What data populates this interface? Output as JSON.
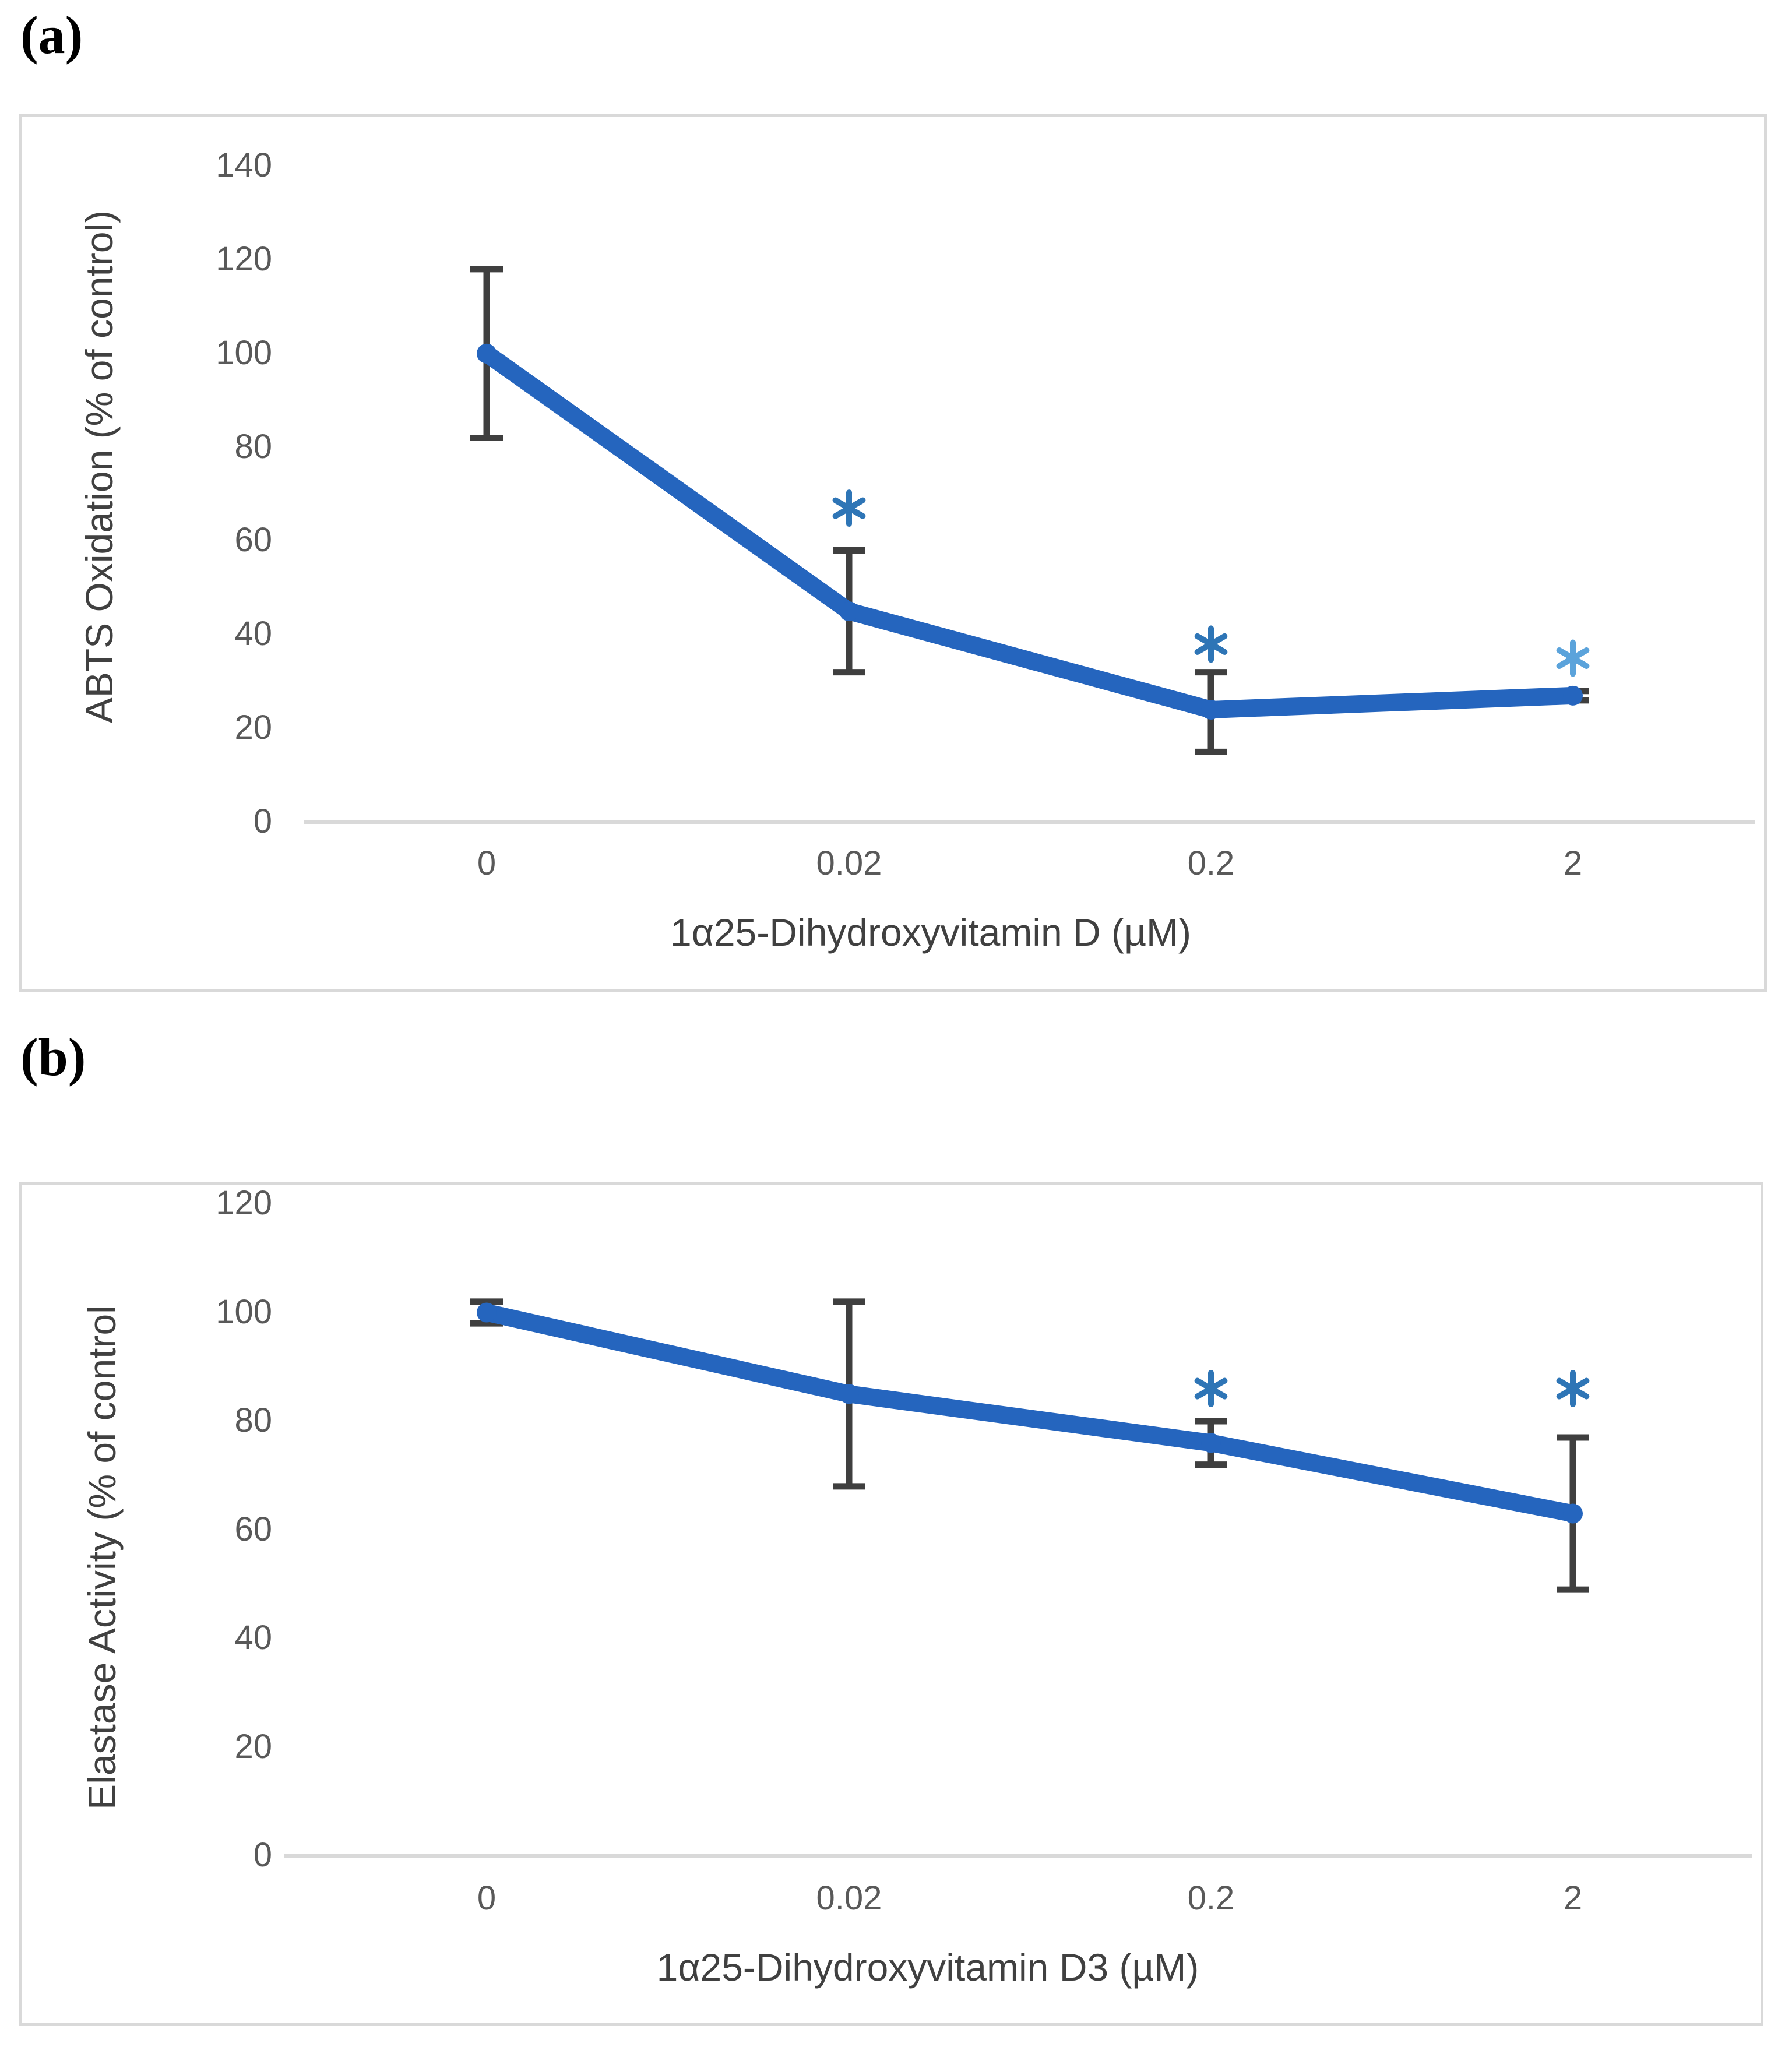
{
  "figure": {
    "background": "#ffffff",
    "border_color": "#d9d9d9",
    "axis_line_color": "#d9d9d9",
    "tick_label_color": "#595959",
    "axis_title_color": "#404040",
    "error_bar_color": "#3f3f3f"
  },
  "chart_data": [
    {
      "id": "a",
      "type": "line",
      "panel_label": "(a)",
      "categories": [
        "0",
        "0.02",
        "0.2",
        "2"
      ],
      "series": [
        {
          "name": "ABTS Oxidation",
          "values": [
            100,
            45,
            24,
            27
          ],
          "error_low": [
            82,
            32,
            15,
            26
          ],
          "error_high": [
            118,
            58,
            32,
            28
          ]
        }
      ],
      "significance": [
        {
          "category_index": 1,
          "symbol": "*",
          "y": 67,
          "color": "#2e75b6"
        },
        {
          "category_index": 2,
          "symbol": "*",
          "y": 38,
          "color": "#2e75b6"
        },
        {
          "category_index": 3,
          "symbol": "*",
          "y": 35,
          "color": "#5ba3db"
        }
      ],
      "xlabel": "1α25-Dihydroxyvitamin D (µM)",
      "ylabel": "ABTS Oxidation (% of control)",
      "ylim": [
        0,
        140
      ],
      "yticks": [
        0,
        20,
        40,
        60,
        80,
        100,
        120,
        140
      ],
      "grid": false,
      "legend": "none",
      "line_color": "#2565be"
    },
    {
      "id": "b",
      "type": "line",
      "panel_label": "(b)",
      "categories": [
        "0",
        "0.02",
        "0.2",
        "2"
      ],
      "series": [
        {
          "name": "Elastase Activity",
          "values": [
            100,
            85,
            76,
            63
          ],
          "error_low": [
            98,
            68,
            72,
            49
          ],
          "error_high": [
            102,
            102,
            80,
            77
          ]
        }
      ],
      "significance": [
        {
          "category_index": 2,
          "symbol": "*",
          "y": 86,
          "color": "#2e75b6"
        },
        {
          "category_index": 3,
          "symbol": "*",
          "y": 86,
          "color": "#2e75b6"
        }
      ],
      "xlabel": "1α25-Dihydroxyvitamin D3 (µM)",
      "ylabel": "Elastase Activity (% of control",
      "ylim": [
        0,
        120
      ],
      "yticks": [
        0,
        20,
        40,
        60,
        80,
        100,
        120
      ],
      "grid": false,
      "legend": "none",
      "line_color": "#2565be"
    }
  ]
}
